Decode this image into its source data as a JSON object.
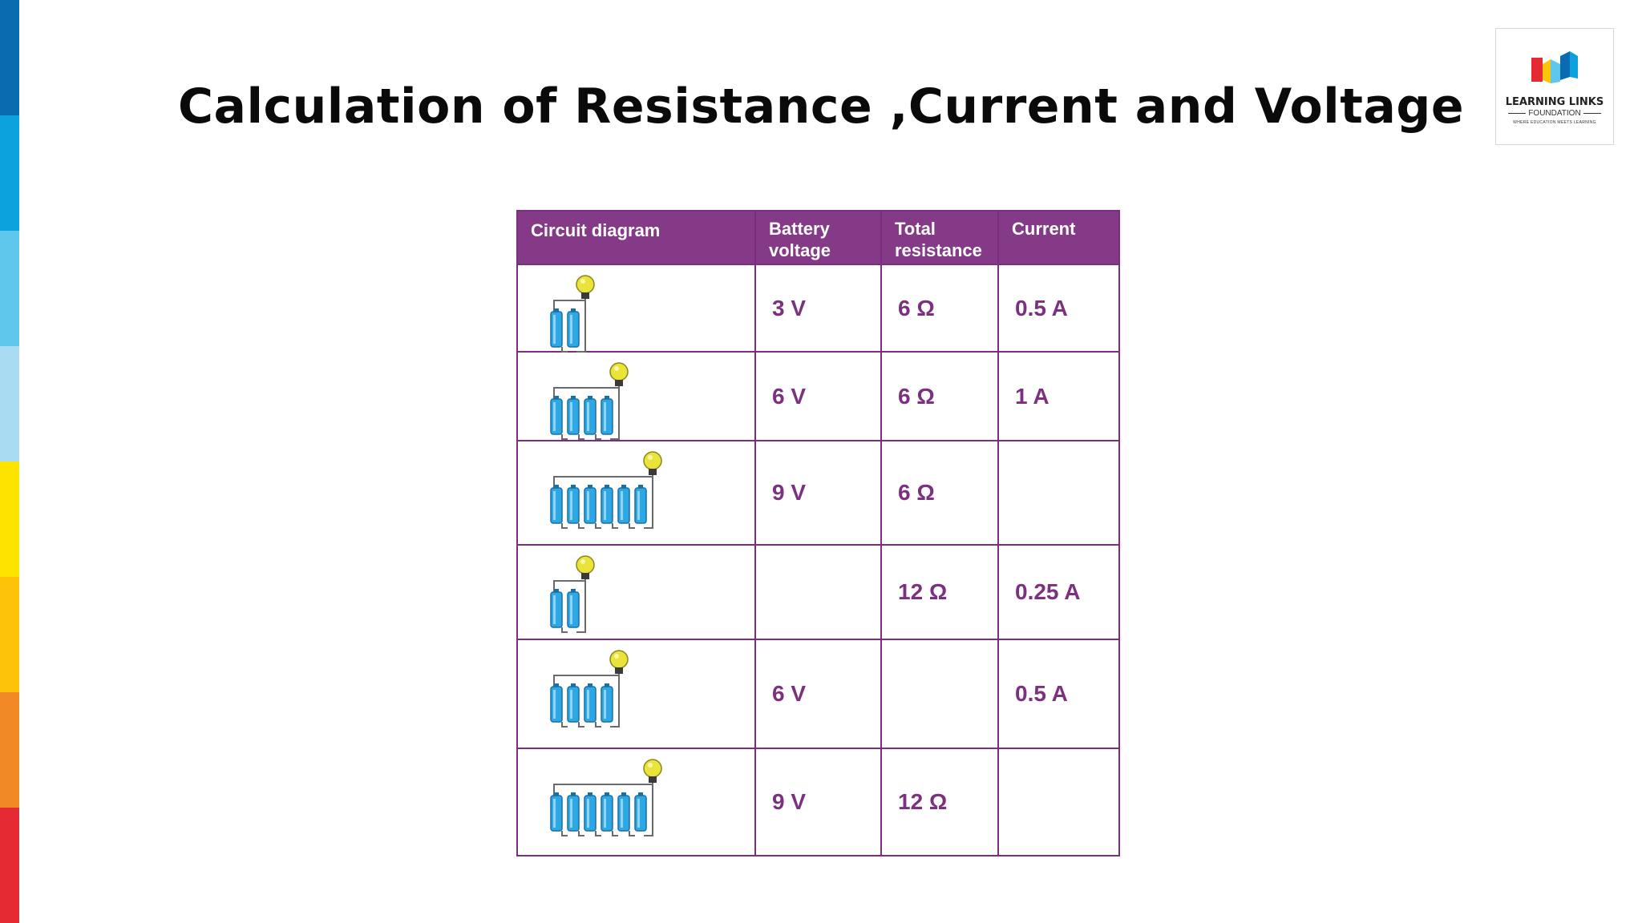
{
  "slide": {
    "title": "Calculation of Resistance ,Current and Voltage",
    "strip_colors": [
      "#0a6bb0",
      "#0ba1dd",
      "#5fc6ec",
      "#a9dcf2",
      "#fde400",
      "#fdc30b",
      "#f18a25",
      "#e62a33"
    ]
  },
  "logo": {
    "name": "LEARNING LINKS",
    "sub": "FOUNDATION",
    "tagline": "WHERE EDUCATION MEETS LEARNING"
  },
  "table": {
    "headers": {
      "circuit_line1": "Circuit diagram",
      "voltage_line1": "Battery",
      "voltage_line2": "voltage",
      "resistance_line1": "Total",
      "resistance_line2": "resistance",
      "current_line1": "Current"
    },
    "rows": [
      {
        "cells": 2,
        "voltage": "3 V",
        "resistance": "6 Ω",
        "current": "0.5 A"
      },
      {
        "cells": 4,
        "voltage": "6 V",
        "resistance": "6 Ω",
        "current": "1 A"
      },
      {
        "cells": 6,
        "voltage": "9 V",
        "resistance": "6 Ω",
        "current": ""
      },
      {
        "cells": 2,
        "voltage": "",
        "resistance": "12 Ω",
        "current": "0.25 A"
      },
      {
        "cells": 4,
        "voltage": "6 V",
        "resistance": "",
        "current": "0.5 A"
      },
      {
        "cells": 6,
        "voltage": "9 V",
        "resistance": "12 Ω",
        "current": ""
      }
    ]
  },
  "icons": {
    "battery": "battery-cell-icon",
    "bulb": "light-bulb-icon"
  },
  "colors": {
    "header_bg": "#853a87",
    "table_border": "#7b2d7f",
    "value_text": "#7b3180",
    "battery": "#2ea8e5",
    "bulb": "#e9e33a"
  }
}
